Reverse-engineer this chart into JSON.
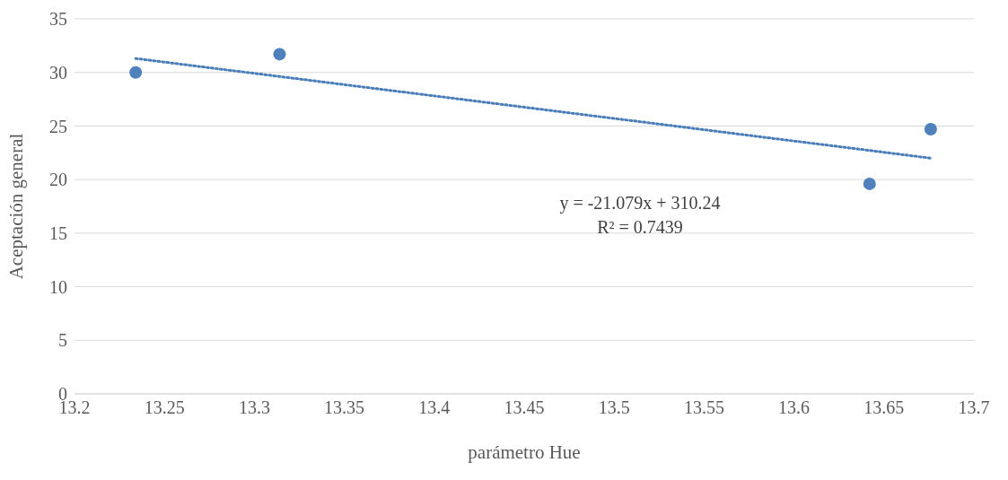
{
  "chart_data": {
    "type": "scatter",
    "xlabel": "parámetro Hue",
    "ylabel": "Aceptación general",
    "xlim": [
      13.2,
      13.7
    ],
    "xticks": [
      13.2,
      13.25,
      13.3,
      13.35,
      13.4,
      13.45,
      13.5,
      13.55,
      13.6,
      13.65,
      13.7
    ],
    "ylim": [
      0,
      35
    ],
    "yticks": [
      0,
      5,
      10,
      15,
      20,
      25,
      30,
      35
    ],
    "grid": "y",
    "marker": "circle",
    "series": [
      {
        "type": "scatter",
        "color": "#4f81bd",
        "x": [
          13.234,
          13.314,
          13.642,
          13.676
        ],
        "values": [
          30.0,
          31.7,
          19.6,
          24.7
        ]
      },
      {
        "type": "line",
        "color": "#4a7ebb",
        "line_style": "dotted",
        "marker": "none",
        "x": [
          13.234,
          13.676
        ],
        "values": [
          31.3,
          22.0
        ]
      }
    ],
    "annotations": [
      "y = -21.079x + 310.24",
      "R² = 0.7439"
    ]
  }
}
